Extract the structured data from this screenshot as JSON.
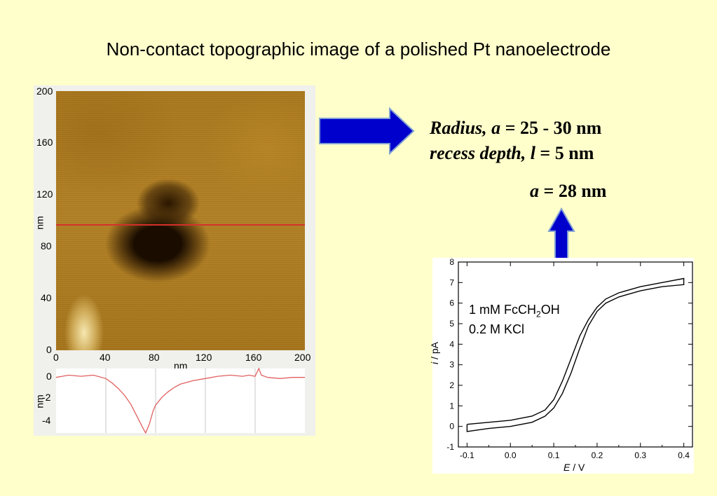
{
  "title": "Non-contact topographic image of a polished Pt nanoelectrode",
  "afm": {
    "y_ticks": [
      "200",
      "160",
      "120",
      "80",
      "40",
      "0"
    ],
    "x_ticks": [
      "0",
      "40",
      "80",
      "120",
      "160",
      "200"
    ],
    "y_label": "nm",
    "x_label": "nm",
    "profile_y_ticks": [
      "0",
      "-2",
      "-4"
    ],
    "profile_y_label": "nm",
    "scanline_color": "#d2302a",
    "profile_line_color": "#e06060"
  },
  "annotation": {
    "line1": {
      "term": "Radius, a",
      "rest": " = 25 - 30 nm"
    },
    "line2": {
      "term": "recess depth, l",
      "rest": " = 5 nm"
    },
    "line3": {
      "term": "a",
      "rest": " = 28 nm"
    }
  },
  "arrows": {
    "color": "#0000cc"
  },
  "cv": {
    "label_line1_pre": "1 mM FcCH",
    "label_line1_sub": "2",
    "label_line1_post": "OH",
    "label_line2": "0.2 M KCl",
    "x_ticks": [
      "-0.1",
      "0.0",
      "0.1",
      "0.2",
      "0.3",
      "0.4"
    ],
    "y_ticks": [
      "8",
      "7",
      "6",
      "5",
      "4",
      "3",
      "2",
      "1",
      "0",
      "-1"
    ],
    "x_axis_label_var": "E",
    "x_axis_label_unit": " / V",
    "y_axis_label_var": "i",
    "y_axis_label_unit": " / pA"
  },
  "chart_data": [
    {
      "type": "line",
      "title": "",
      "xlabel": "nm",
      "ylabel": "nm",
      "xlim": [
        0,
        200
      ],
      "ylim": [
        -5,
        0.8
      ],
      "series": [
        {
          "x": [
            0,
            5,
            10,
            20,
            30,
            40,
            45,
            50,
            55,
            60,
            65,
            70,
            72,
            75,
            78,
            80,
            85,
            90,
            95,
            100,
            110,
            120,
            130,
            140,
            150,
            155,
            160,
            163,
            165,
            170,
            180,
            190,
            200
          ],
          "values": [
            0.0,
            0.1,
            0.2,
            0.1,
            0.2,
            -0.1,
            -0.5,
            -1.0,
            -1.6,
            -2.4,
            -3.5,
            -4.6,
            -5.0,
            -4.2,
            -3.0,
            -2.5,
            -1.8,
            -1.3,
            -0.9,
            -0.6,
            -0.3,
            -0.1,
            0.1,
            0.2,
            0.1,
            0.2,
            0.1,
            0.8,
            0.2,
            0.0,
            -0.1,
            0.0,
            0.0
          ]
        }
      ]
    },
    {
      "type": "line",
      "title": "",
      "xlabel": "E / V",
      "ylabel": "i / pA",
      "xlim": [
        -0.12,
        0.42
      ],
      "ylim": [
        -1,
        8
      ],
      "series": [
        {
          "x": [
            -0.1,
            -0.05,
            0.0,
            0.05,
            0.08,
            0.1,
            0.12,
            0.14,
            0.16,
            0.18,
            0.2,
            0.22,
            0.25,
            0.3,
            0.35,
            0.4,
            0.4,
            0.35,
            0.3,
            0.25,
            0.22,
            0.2,
            0.18,
            0.16,
            0.14,
            0.12,
            0.1,
            0.08,
            0.05,
            0.0,
            -0.05,
            -0.1,
            -0.1
          ],
          "values": [
            0.1,
            0.2,
            0.3,
            0.5,
            0.8,
            1.3,
            2.2,
            3.3,
            4.4,
            5.2,
            5.8,
            6.2,
            6.5,
            6.8,
            7.0,
            7.2,
            6.9,
            6.8,
            6.6,
            6.3,
            6.0,
            5.6,
            4.9,
            3.8,
            2.6,
            1.6,
            0.9,
            0.5,
            0.2,
            0.0,
            -0.1,
            -0.25,
            0.1
          ]
        }
      ]
    }
  ]
}
